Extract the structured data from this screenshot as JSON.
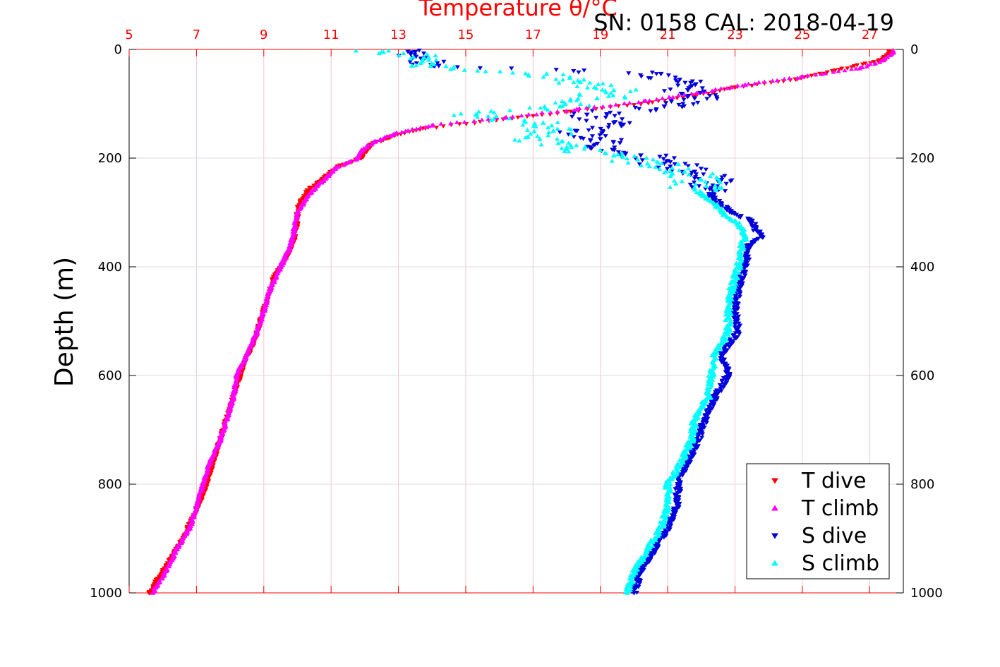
{
  "chart_data": {
    "type": "scatter",
    "title": "Temperature θ/°C",
    "subtitle": "SN: 0158  CAL: 2018-04-19",
    "ylabel": "Depth (m)",
    "xlim": [
      5,
      28
    ],
    "ylim": [
      1000,
      0
    ],
    "x_ticks": [
      5,
      7,
      9,
      11,
      13,
      15,
      17,
      19,
      21,
      23,
      25,
      27
    ],
    "y_ticks": [
      0,
      200,
      400,
      600,
      800,
      1000
    ],
    "grid": true,
    "legend_position": "bottom-right",
    "series": [
      {
        "name": "T dive",
        "marker": "triangle-down",
        "color": "#ff0000",
        "depth": [
          5,
          20,
          40,
          55,
          70,
          85,
          100,
          115,
          130,
          145,
          160,
          175,
          190,
          200,
          215,
          235,
          260,
          290,
          320,
          350,
          380,
          420,
          460,
          500,
          540,
          580,
          620,
          660,
          700,
          740,
          780,
          820,
          860,
          900,
          940,
          970,
          1000
        ],
        "value": [
          27.6,
          27.3,
          25.9,
          24.8,
          23.0,
          21.8,
          20.2,
          18.0,
          15.9,
          13.8,
          12.8,
          12.2,
          12.0,
          11.9,
          11.2,
          10.8,
          10.3,
          10.0,
          10.0,
          9.9,
          9.7,
          9.3,
          9.1,
          8.9,
          8.7,
          8.4,
          8.2,
          8.0,
          7.8,
          7.6,
          7.4,
          7.2,
          6.9,
          6.6,
          6.2,
          5.9,
          5.6
        ]
      },
      {
        "name": "T climb",
        "marker": "triangle-up",
        "color": "#ff00ff",
        "depth": [
          5,
          20,
          35,
          50,
          65,
          80,
          95,
          110,
          125,
          140,
          155,
          170,
          185,
          200,
          220,
          245,
          270,
          300,
          330,
          360,
          400,
          440,
          480,
          520,
          560,
          600,
          640,
          680,
          720,
          760,
          800,
          840,
          880,
          920,
          960,
          1000
        ],
        "value": [
          27.7,
          27.4,
          26.7,
          25.0,
          23.3,
          21.9,
          20.3,
          18.3,
          16.2,
          14.0,
          12.9,
          12.3,
          11.9,
          11.8,
          11.1,
          10.7,
          10.3,
          10.0,
          9.9,
          9.8,
          9.5,
          9.2,
          9.0,
          8.8,
          8.5,
          8.2,
          8.1,
          7.9,
          7.7,
          7.4,
          7.2,
          7.0,
          6.8,
          6.4,
          6.1,
          5.7
        ]
      },
      {
        "name": "S dive",
        "marker": "triangle-down",
        "color": "#0000dd",
        "depth": [
          5,
          15,
          30,
          45,
          60,
          75,
          90,
          105,
          120,
          135,
          150,
          165,
          180,
          195,
          210,
          225,
          240,
          255,
          270,
          285,
          300,
          315,
          330,
          345,
          360,
          400,
          440,
          480,
          520,
          560,
          600,
          640,
          680,
          720,
          760,
          800,
          840,
          880,
          920,
          960,
          1000
        ],
        "value": [
          13.5,
          13.8,
          14.2,
          20.8,
          21.3,
          21.6,
          21.8,
          20.9,
          18.6,
          19.4,
          18.3,
          19.0,
          18.7,
          20.2,
          20.9,
          21.8,
          22.6,
          22.3,
          22.3,
          22.6,
          22.9,
          23.5,
          23.6,
          23.8,
          23.4,
          23.3,
          23.1,
          23.0,
          23.1,
          22.6,
          22.8,
          22.4,
          22.1,
          21.9,
          21.6,
          21.3,
          21.3,
          21.0,
          20.6,
          20.2,
          20.0
        ]
      },
      {
        "name": "S climb",
        "marker": "triangle-up",
        "color": "#00ffff",
        "depth": [
          5,
          15,
          30,
          45,
          60,
          75,
          90,
          105,
          120,
          135,
          150,
          165,
          180,
          195,
          210,
          225,
          240,
          255,
          270,
          285,
          300,
          315,
          330,
          345,
          360,
          400,
          440,
          480,
          520,
          560,
          600,
          640,
          680,
          720,
          760,
          800,
          840,
          880,
          920,
          960,
          1000
        ],
        "value": [
          12.5,
          13.9,
          13.4,
          17.4,
          18.4,
          19.4,
          18.9,
          17.8,
          15.3,
          17.3,
          17.6,
          17.2,
          18.0,
          19.4,
          20.4,
          21.5,
          22.0,
          21.8,
          22.1,
          22.4,
          22.6,
          23.0,
          23.2,
          23.3,
          23.2,
          23.1,
          22.9,
          22.8,
          22.8,
          22.4,
          22.3,
          22.2,
          21.8,
          21.7,
          21.4,
          21.0,
          21.0,
          20.8,
          20.4,
          20.0,
          19.8
        ]
      }
    ]
  }
}
